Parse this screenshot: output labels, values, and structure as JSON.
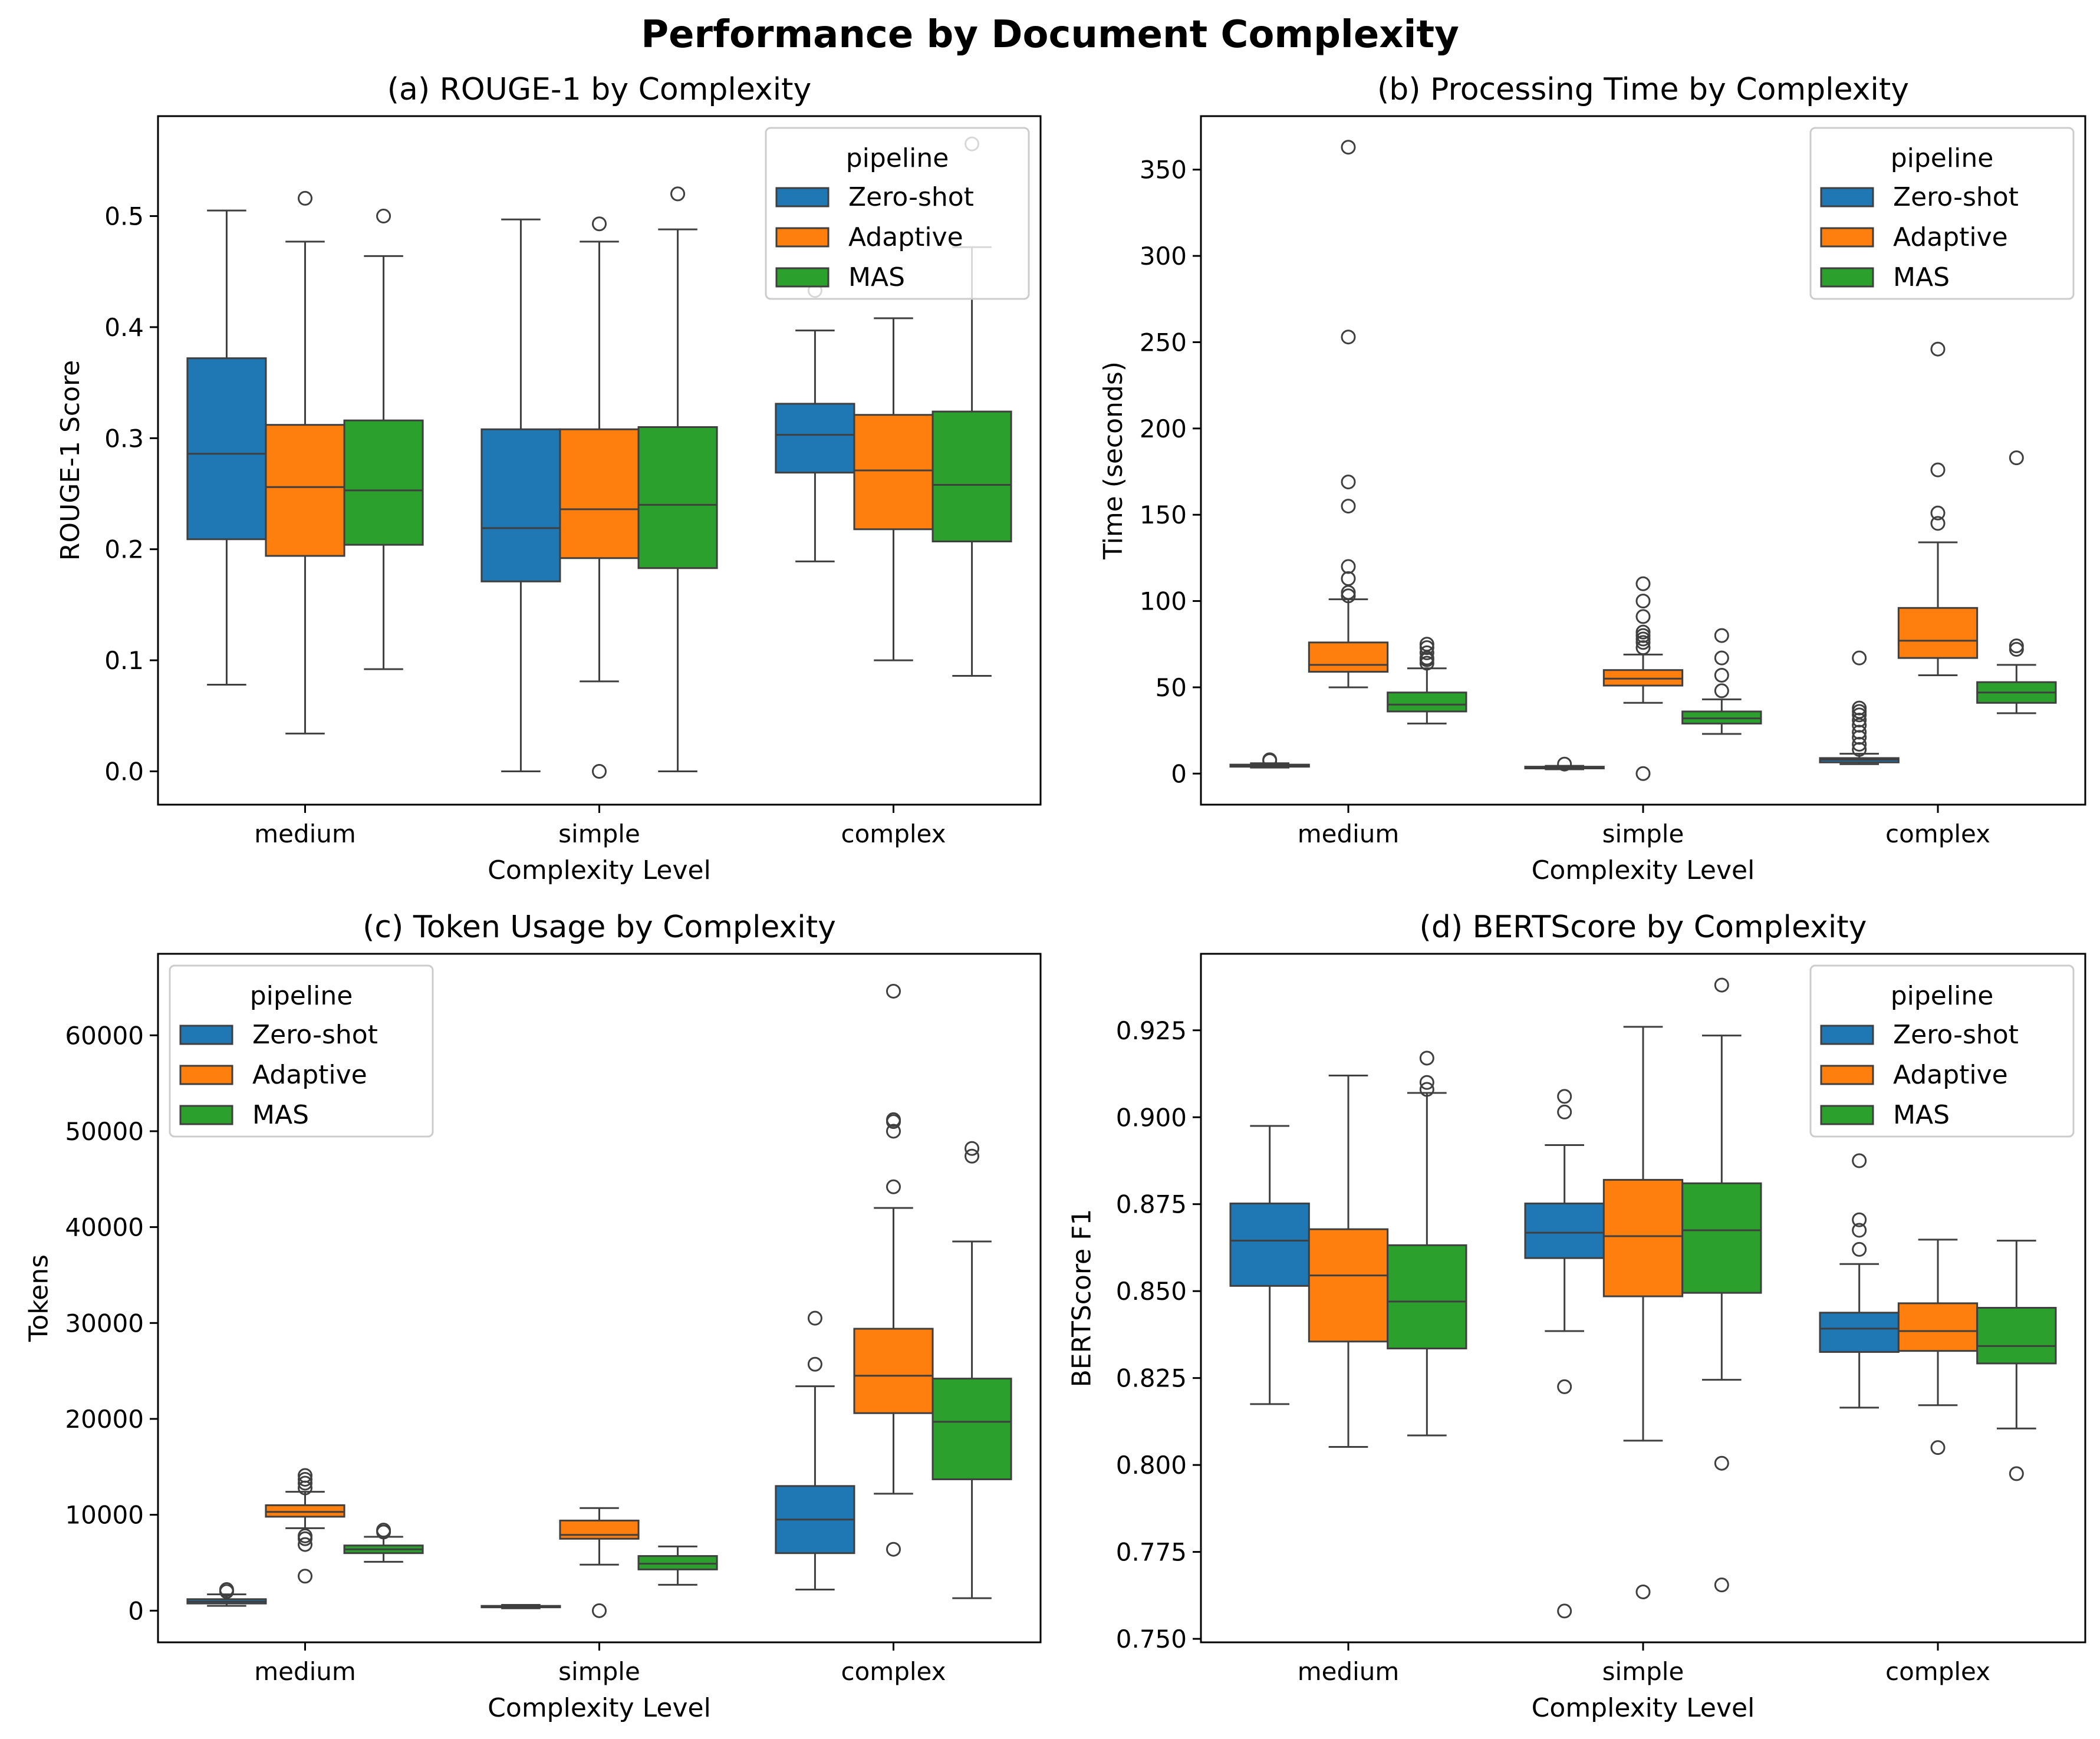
{
  "figure": {
    "title": "Performance by Document Complexity"
  },
  "legend_title": "pipeline",
  "colors": {
    "Zero-shot": "#1f77b4",
    "Adaptive": "#ff7f0e",
    "MAS": "#2ca02c"
  },
  "chart_data": [
    {
      "type": "box",
      "title": "(a) ROUGE-1 by Complexity",
      "xlabel": "Complexity Level",
      "ylabel": "ROUGE-1 Score",
      "categories": [
        "medium",
        "simple",
        "complex"
      ],
      "ylim": [
        -0.03,
        0.59
      ],
      "yticks": [
        0.0,
        0.1,
        0.2,
        0.3,
        0.4,
        0.5
      ],
      "ytick_labels": [
        "0.0",
        "0.1",
        "0.2",
        "0.3",
        "0.4",
        "0.5"
      ],
      "legend_position": "upper right",
      "series": [
        {
          "name": "Zero-shot",
          "boxes": [
            {
              "whislo": 0.078,
              "q1": 0.209,
              "med": 0.286,
              "q3": 0.372,
              "whishi": 0.505,
              "fliers": []
            },
            {
              "whislo": 0.0,
              "q1": 0.171,
              "med": 0.219,
              "q3": 0.308,
              "whishi": 0.497,
              "fliers": []
            },
            {
              "whislo": 0.189,
              "q1": 0.269,
              "med": 0.303,
              "q3": 0.331,
              "whishi": 0.397,
              "fliers": [
                0.433
              ]
            }
          ]
        },
        {
          "name": "Adaptive",
          "boxes": [
            {
              "whislo": 0.034,
              "q1": 0.194,
              "med": 0.256,
              "q3": 0.312,
              "whishi": 0.477,
              "fliers": [
                0.516
              ]
            },
            {
              "whislo": 0.081,
              "q1": 0.192,
              "med": 0.236,
              "q3": 0.308,
              "whishi": 0.477,
              "fliers": [
                0.0,
                0.493
              ]
            },
            {
              "whislo": 0.1,
              "q1": 0.218,
              "med": 0.271,
              "q3": 0.321,
              "whishi": 0.408,
              "fliers": []
            }
          ]
        },
        {
          "name": "MAS",
          "boxes": [
            {
              "whislo": 0.092,
              "q1": 0.204,
              "med": 0.253,
              "q3": 0.316,
              "whishi": 0.464,
              "fliers": [
                0.5
              ]
            },
            {
              "whislo": 0.0,
              "q1": 0.183,
              "med": 0.24,
              "q3": 0.31,
              "whishi": 0.488,
              "fliers": [
                0.52
              ]
            },
            {
              "whislo": 0.086,
              "q1": 0.207,
              "med": 0.258,
              "q3": 0.324,
              "whishi": 0.472,
              "fliers": [
                0.565
              ]
            }
          ]
        }
      ]
    },
    {
      "type": "box",
      "title": "(b) Processing Time by Complexity",
      "xlabel": "Complexity Level",
      "ylabel": "Time (seconds)",
      "categories": [
        "medium",
        "simple",
        "complex"
      ],
      "ylim": [
        -18,
        381
      ],
      "yticks": [
        0,
        50,
        100,
        150,
        200,
        250,
        300,
        350
      ],
      "ytick_labels": [
        "0",
        "50",
        "100",
        "150",
        "200",
        "250",
        "300",
        "350"
      ],
      "legend_position": "upper right",
      "series": [
        {
          "name": "Zero-shot",
          "boxes": [
            {
              "whislo": 3.5,
              "q1": 4.0,
              "med": 4.6,
              "q3": 5.2,
              "whishi": 6.0,
              "fliers": [
                7.5,
                8.0
              ]
            },
            {
              "whislo": 2.5,
              "q1": 3.0,
              "med": 3.5,
              "q3": 4.0,
              "whishi": 4.5,
              "fliers": [
                5.5
              ]
            },
            {
              "whislo": 5.5,
              "q1": 6.5,
              "med": 8.0,
              "q3": 9.0,
              "whishi": 11.5,
              "fliers": [
                14,
                17,
                21,
                24,
                28,
                31,
                34,
                36,
                38,
                67
              ]
            }
          ]
        },
        {
          "name": "Adaptive",
          "boxes": [
            {
              "whislo": 50,
              "q1": 59,
              "med": 63,
              "q3": 76,
              "whishi": 101,
              "fliers": [
                103,
                105,
                113,
                120,
                155,
                169,
                253,
                363
              ]
            },
            {
              "whislo": 41,
              "q1": 51,
              "med": 55,
              "q3": 60,
              "whishi": 69,
              "fliers": [
                0,
                73,
                76,
                78,
                80,
                82,
                91,
                100,
                110
              ]
            },
            {
              "whislo": 57,
              "q1": 67,
              "med": 77,
              "q3": 96,
              "whishi": 134,
              "fliers": [
                145,
                151,
                176,
                246
              ]
            }
          ]
        },
        {
          "name": "MAS",
          "boxes": [
            {
              "whislo": 29,
              "q1": 36,
              "med": 40,
              "q3": 47,
              "whishi": 61,
              "fliers": [
                64,
                66,
                67,
                70,
                73,
                75
              ]
            },
            {
              "whislo": 23,
              "q1": 29,
              "med": 32,
              "q3": 36,
              "whishi": 43,
              "fliers": [
                48,
                57,
                67,
                80
              ]
            },
            {
              "whislo": 35,
              "q1": 41,
              "med": 47,
              "q3": 53,
              "whishi": 63,
              "fliers": [
                72,
                74,
                183
              ]
            }
          ]
        }
      ]
    },
    {
      "type": "box",
      "title": "(c) Token Usage by Complexity",
      "xlabel": "Complexity Level",
      "ylabel": "Tokens",
      "categories": [
        "medium",
        "simple",
        "complex"
      ],
      "ylim": [
        -3300,
        68500
      ],
      "yticks": [
        0,
        10000,
        20000,
        30000,
        40000,
        50000,
        60000
      ],
      "ytick_labels": [
        "0",
        "10000",
        "20000",
        "30000",
        "40000",
        "50000",
        "60000"
      ],
      "legend_position": "upper left",
      "series": [
        {
          "name": "Zero-shot",
          "boxes": [
            {
              "whislo": 500,
              "q1": 750,
              "med": 950,
              "q3": 1200,
              "whishi": 1700,
              "fliers": [
                2000,
                2200
              ]
            },
            {
              "whislo": 250,
              "q1": 350,
              "med": 400,
              "q3": 500,
              "whishi": 600,
              "fliers": []
            },
            {
              "whislo": 2200,
              "q1": 6000,
              "med": 9500,
              "q3": 13000,
              "whishi": 23400,
              "fliers": [
                25700,
                30500
              ]
            }
          ]
        },
        {
          "name": "Adaptive",
          "boxes": [
            {
              "whislo": 8600,
              "q1": 9800,
              "med": 10300,
              "q3": 11000,
              "whishi": 12400,
              "fliers": [
                3600,
                6900,
                7500,
                7800,
                12800,
                13300,
                13700,
                14100
              ]
            },
            {
              "whislo": 4800,
              "q1": 7500,
              "med": 7900,
              "q3": 9400,
              "whishi": 10700,
              "fliers": [
                0
              ]
            },
            {
              "whislo": 12200,
              "q1": 20600,
              "med": 24500,
              "q3": 29400,
              "whishi": 42000,
              "fliers": [
                6400,
                44200,
                50000,
                51000,
                51200,
                64600
              ]
            }
          ]
        },
        {
          "name": "MAS",
          "boxes": [
            {
              "whislo": 5100,
              "q1": 6000,
              "med": 6400,
              "q3": 6800,
              "whishi": 7700,
              "fliers": [
                8200,
                8400
              ]
            },
            {
              "whislo": 2700,
              "q1": 4300,
              "med": 4900,
              "q3": 5700,
              "whishi": 6700,
              "fliers": []
            },
            {
              "whislo": 1300,
              "q1": 13700,
              "med": 19700,
              "q3": 24200,
              "whishi": 38500,
              "fliers": [
                47400,
                48200
              ]
            }
          ]
        }
      ]
    },
    {
      "type": "box",
      "title": "(d) BERTScore by Complexity",
      "xlabel": "Complexity Level",
      "ylabel": "BERTScore F1",
      "categories": [
        "medium",
        "simple",
        "complex"
      ],
      "ylim": [
        0.749,
        0.947
      ],
      "yticks": [
        0.75,
        0.775,
        0.8,
        0.825,
        0.85,
        0.875,
        0.9,
        0.925
      ],
      "ytick_labels": [
        "0.750",
        "0.775",
        "0.800",
        "0.825",
        "0.850",
        "0.875",
        "0.900",
        "0.925"
      ],
      "legend_position": "upper right",
      "series": [
        {
          "name": "Zero-shot",
          "boxes": [
            {
              "whislo": 0.8175,
              "q1": 0.8515,
              "med": 0.8645,
              "q3": 0.8752,
              "whishi": 0.8975,
              "fliers": []
            },
            {
              "whislo": 0.8385,
              "q1": 0.8595,
              "med": 0.8668,
              "q3": 0.8752,
              "whishi": 0.892,
              "fliers": [
                0.758,
                0.8225,
                0.9015,
                0.906
              ]
            },
            {
              "whislo": 0.8165,
              "q1": 0.8325,
              "med": 0.8392,
              "q3": 0.8438,
              "whishi": 0.8578,
              "fliers": [
                0.862,
                0.8675,
                0.8705,
                0.8875
              ]
            }
          ]
        },
        {
          "name": "Adaptive",
          "boxes": [
            {
              "whislo": 0.8052,
              "q1": 0.8355,
              "med": 0.8545,
              "q3": 0.8678,
              "whishi": 0.912,
              "fliers": []
            },
            {
              "whislo": 0.807,
              "q1": 0.8485,
              "med": 0.8658,
              "q3": 0.882,
              "whishi": 0.926,
              "fliers": [
                0.7635
              ]
            },
            {
              "whislo": 0.8172,
              "q1": 0.8328,
              "med": 0.8385,
              "q3": 0.8465,
              "whishi": 0.8648,
              "fliers": [
                0.805
              ]
            }
          ]
        },
        {
          "name": "MAS",
          "boxes": [
            {
              "whislo": 0.8085,
              "q1": 0.8335,
              "med": 0.847,
              "q3": 0.8632,
              "whishi": 0.907,
              "fliers": [
                0.908,
                0.91,
                0.917
              ]
            },
            {
              "whislo": 0.8245,
              "q1": 0.8495,
              "med": 0.8675,
              "q3": 0.881,
              "whishi": 0.9235,
              "fliers": [
                0.7655,
                0.8005,
                0.938
              ]
            },
            {
              "whislo": 0.8105,
              "q1": 0.8292,
              "med": 0.8342,
              "q3": 0.8452,
              "whishi": 0.8645,
              "fliers": [
                0.7975
              ]
            }
          ]
        }
      ]
    }
  ]
}
